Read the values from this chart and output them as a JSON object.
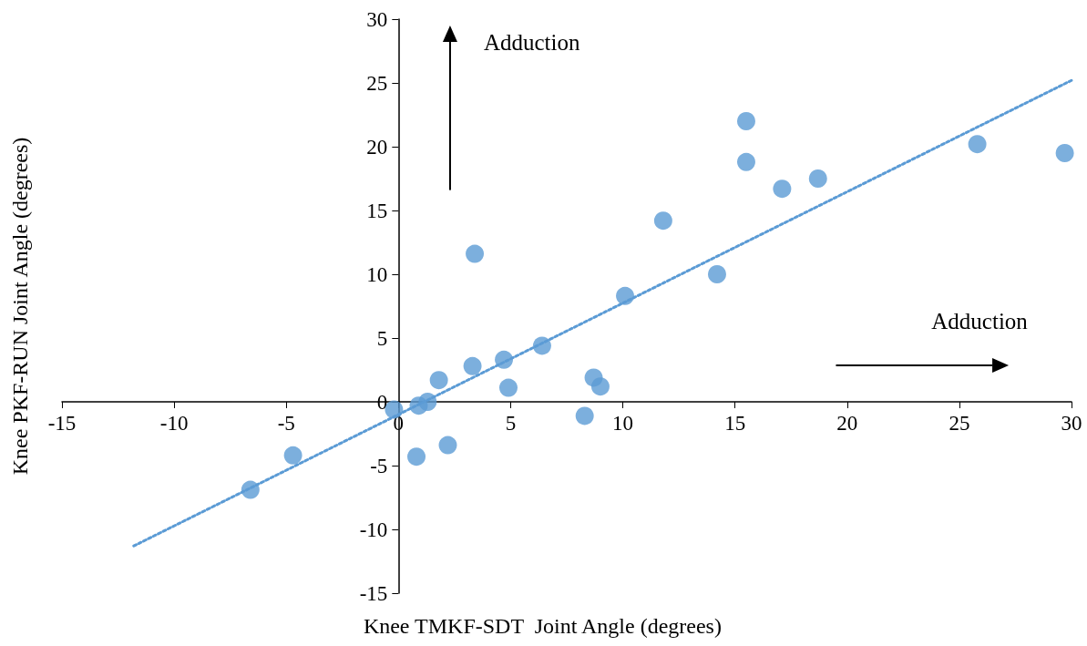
{
  "chart_data": {
    "type": "scatter",
    "xlabel": "Knee TMKF-SDT  Joint Angle (degrees)",
    "ylabel": "Knee PKF-RUN Joint Angle (degrees)",
    "annotations": [
      "Adduction",
      "Adduction"
    ],
    "x": [
      -6.6,
      -4.7,
      -0.2,
      0.9,
      1.3,
      0.8,
      2.2,
      1.8,
      3.3,
      3.4,
      4.7,
      4.9,
      6.4,
      8.3,
      8.7,
      9.0,
      10.1,
      11.8,
      14.2,
      15.5,
      15.5,
      17.1,
      18.7,
      25.8,
      29.7
    ],
    "series": [
      {
        "color": "#5b9bd5",
        "values": [
          -6.9,
          -4.2,
          -0.6,
          -0.3,
          0.0,
          -4.3,
          -3.4,
          1.7,
          2.8,
          11.6,
          3.3,
          1.1,
          4.4,
          -1.1,
          1.9,
          1.2,
          8.3,
          14.2,
          10.0,
          22.0,
          18.8,
          16.7,
          17.5,
          20.2,
          19.5
        ]
      },
      {
        "type": "line",
        "color": "#5b9bd5",
        "line_style": "dotted",
        "marker": "none",
        "x": [
          -11.8,
          30
        ],
        "values": [
          -11.3,
          25.2
        ]
      }
    ],
    "xlim": [
      -15,
      30
    ],
    "xticks": [
      -15,
      -10,
      -5,
      0,
      5,
      10,
      15,
      20,
      25,
      30
    ],
    "ylim": [
      -15,
      30
    ],
    "yticks": [
      -15,
      -10,
      -5,
      0,
      5,
      10,
      15,
      20,
      25,
      30
    ],
    "marker": "circle"
  }
}
